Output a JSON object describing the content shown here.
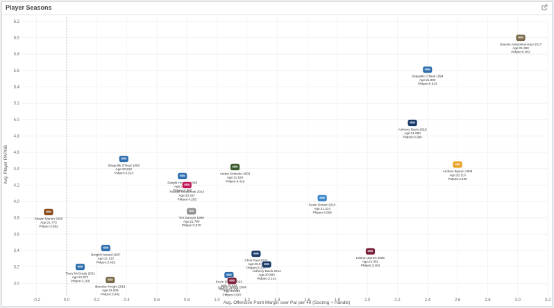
{
  "panel": {
    "title": "Player Seasons",
    "expand_icon": "expand-icon"
  },
  "chart_data": {
    "type": "scatter",
    "xlabel": "Avg. Offensive Point Margin over Par per 40 (Scoring + Handle)",
    "ylabel": "Avg. Player PAPHB",
    "xlim": [
      -0.3,
      3.2
    ],
    "ylim": [
      2.85,
      6.25
    ],
    "x_ticks": [
      "-0.2",
      "0.0",
      "0.2",
      "0.4",
      "0.6",
      "0.8",
      "1.0",
      "1.2",
      "1.4",
      "1.6",
      "1.8",
      "2.0",
      "2.2",
      "2.4",
      "2.6",
      "2.8",
      "3.0",
      "3.2"
    ],
    "x_tick_values": [
      -0.2,
      0.0,
      0.2,
      0.4,
      0.6,
      0.8,
      1.0,
      1.2,
      1.4,
      1.6,
      1.8,
      2.0,
      2.2,
      2.4,
      2.6,
      2.8,
      3.0,
      3.2
    ],
    "y_ticks": [
      "3.0",
      "3.2",
      "3.4",
      "3.6",
      "3.8",
      "4.0",
      "4.2",
      "4.4",
      "4.6",
      "4.8",
      "5.0",
      "5.2",
      "5.4",
      "5.6",
      "5.8",
      "6.0",
      "6.2"
    ],
    "y_tick_values": [
      3.0,
      3.2,
      3.4,
      3.6,
      3.8,
      4.0,
      4.2,
      4.4,
      4.6,
      4.8,
      5.0,
      5.2,
      5.4,
      5.6,
      5.8,
      6.0,
      6.2
    ],
    "reference_line_x": 0.0,
    "points": [
      {
        "name": "Giannis Antetokounmpo 2017",
        "age": "Age:21.990",
        "pm": "PMpen:6.002",
        "x": 3.02,
        "y": 6.0,
        "color": "#7a6a4a",
        "logo": "bucks-logo"
      },
      {
        "name": "Shaquille O'Neal 1994",
        "age": "Age:21.990",
        "pm": "PMpen:5.613",
        "x": 2.4,
        "y": 5.61,
        "color": "#2f6fb0",
        "logo": "magic-logo"
      },
      {
        "name": "Anthony Davis 2015",
        "age": "Age:21.990",
        "pm": "PMpen:4.966",
        "x": 2.3,
        "y": 4.96,
        "color": "#1a3a6a",
        "logo": "pelicans-logo"
      },
      {
        "name": "Andrew Bynum 2008",
        "age": "Age:20.110",
        "pm": "PMpen:4.440",
        "x": 2.6,
        "y": 4.45,
        "color": "#e8a020",
        "logo": "lakers-logo"
      },
      {
        "name": "Kevin Durant 2010",
        "age": "Age:21.314",
        "pm": "PMpen:4.009",
        "x": 1.7,
        "y": 4.04,
        "color": "#3a86c8",
        "logo": "thunder-logo"
      },
      {
        "name": "LeBron James 2005",
        "age": "Age:21.051",
        "pm": "PMpen:3.404",
        "x": 2.02,
        "y": 3.39,
        "color": "#7a2038",
        "logo": "cavaliers-logo"
      },
      {
        "name": "Shawn Marion 2000",
        "age": "Age:21.773",
        "pm": "PMpen:3.852",
        "x": -0.12,
        "y": 3.87,
        "color": "#8a4a1a",
        "logo": "suns-logo"
      },
      {
        "name": "Shaquille O'Neal 1993",
        "age": "Age:20.910",
        "pm": "PMpen:4.514",
        "x": 0.38,
        "y": 4.52,
        "color": "#2f6fb0",
        "logo": "magic-logo"
      },
      {
        "name": "Dwight Howard 2006",
        "age": "Age:20.459",
        "pm": "PMpen:4.306",
        "x": 0.77,
        "y": 4.31,
        "color": "#2f6fb0",
        "logo": "magic-logo"
      },
      {
        "name": "Andrei Kirilenko 2003",
        "age": "Age:21.530",
        "pm": "PMpen:4.418",
        "x": 1.12,
        "y": 4.42,
        "color": "#3a5a2a",
        "logo": "jazz-logo"
      },
      {
        "name": "Russell Westbrook 2014",
        "age": "Age:20.457",
        "pm": "PMpen:4.205",
        "x": 0.8,
        "y": 4.2,
        "color": "#c2185b",
        "logo": "team-logo"
      },
      {
        "name": "Tim Duncan 1998",
        "age": "Age:21.790",
        "pm": "PMpen:3.870",
        "x": 0.83,
        "y": 3.88,
        "color": "#909090",
        "logo": "spurs-logo"
      },
      {
        "name": "Dwight Howard 2007",
        "age": "Age:21.132",
        "pm": "PMpen:3.425",
        "x": 0.26,
        "y": 3.43,
        "color": "#2f6fb0",
        "logo": "magic-logo"
      },
      {
        "name": "Tracy McGrady 2001",
        "age": "Age:21.971",
        "pm": "PMpen:3.168",
        "x": 0.09,
        "y": 3.2,
        "color": "#2f6fb0",
        "logo": "magic-logo"
      },
      {
        "name": "Brandon Knight 2013",
        "age": "Age:22.008",
        "pm": "PMpen:3.042",
        "x": 0.29,
        "y": 3.04,
        "color": "#7a6a4a",
        "logo": "bucks-logo"
      },
      {
        "name": "Chris Paul 2006",
        "age": "Age:20.913",
        "pm": "PMpen:3.288",
        "x": 1.26,
        "y": 3.36,
        "color": "#1a3a6a",
        "logo": "pelicans-logo"
      },
      {
        "name": "Anthony Davis 2014",
        "age": "Age:20.880",
        "pm": "PMpen:3.214",
        "x": 1.33,
        "y": 3.23,
        "color": "#1a3a6a",
        "logo": "pelicans-logo"
      },
      {
        "name": "Kevin Durant 2012",
        "age": "Age:20.534",
        "pm": "PMpen:3.106",
        "x": 1.08,
        "y": 3.1,
        "color": "#2f6fb0",
        "logo": "magic-logo"
      },
      {
        "name": "LeBron James 2004",
        "age": "Age:22.393",
        "pm": "PMpen:3.007",
        "x": 1.1,
        "y": 3.03,
        "color": "#7a2038",
        "logo": "cavaliers-logo"
      }
    ]
  }
}
